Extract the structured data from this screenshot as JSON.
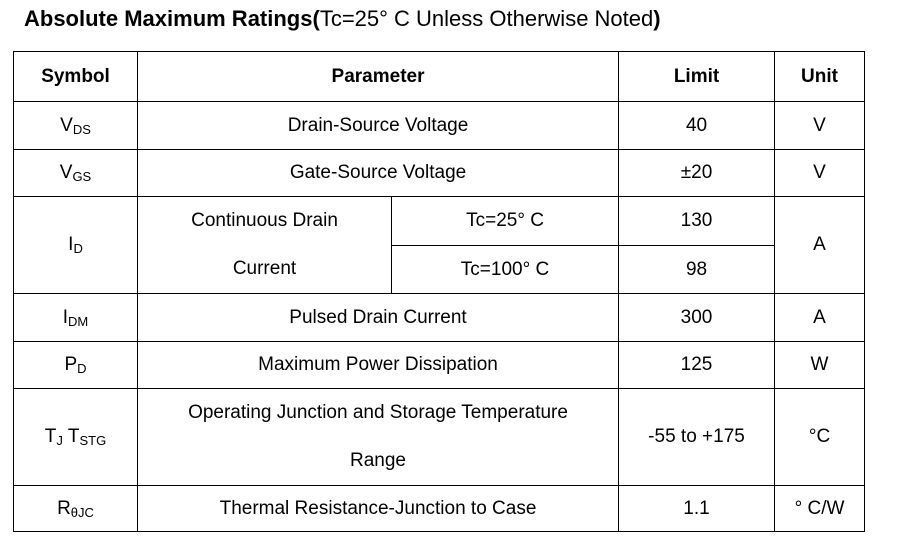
{
  "title": {
    "bold": "Absolute Maximum Ratings(",
    "normal": "Tc=25° C Unless Otherwise Noted",
    "close": ")"
  },
  "headers": {
    "symbol": "Symbol",
    "parameter": "Parameter",
    "limit": "Limit",
    "unit": "Unit"
  },
  "rows": {
    "vds": {
      "sym": "V",
      "sub": "DS",
      "param": "Drain-Source Voltage",
      "limit": "40",
      "unit": "V"
    },
    "vgs": {
      "sym": "V",
      "sub": "GS",
      "param": "Gate-Source Voltage",
      "limit": "±20",
      "unit": "V"
    },
    "id": {
      "sym": "I",
      "sub": "D",
      "param_line1": "Continuous Drain",
      "param_line2": "Current",
      "cond1": "Tc=25° C",
      "cond2": "Tc=100° C",
      "limit1": "130",
      "limit2": "98",
      "unit": "A"
    },
    "idm": {
      "sym": "I",
      "sub": "DM",
      "param": "Pulsed Drain Current",
      "limit": "300",
      "unit": "A"
    },
    "pd": {
      "sym": "P",
      "sub": "D",
      "param": "Maximum Power Dissipation",
      "limit": "125",
      "unit": "W"
    },
    "tj": {
      "sym1": "T",
      "sub1": "J",
      "sym2": " T",
      "sub2": "STG",
      "param_line1": "Operating Junction and Storage Temperature",
      "param_line2": "Range",
      "limit": "-55 to +175",
      "unit": "°C"
    },
    "rth": {
      "sym": "R",
      "sub": "θJC",
      "param": "Thermal Resistance-Junction to Case",
      "limit": "1.1",
      "unit": "° C/W"
    }
  }
}
